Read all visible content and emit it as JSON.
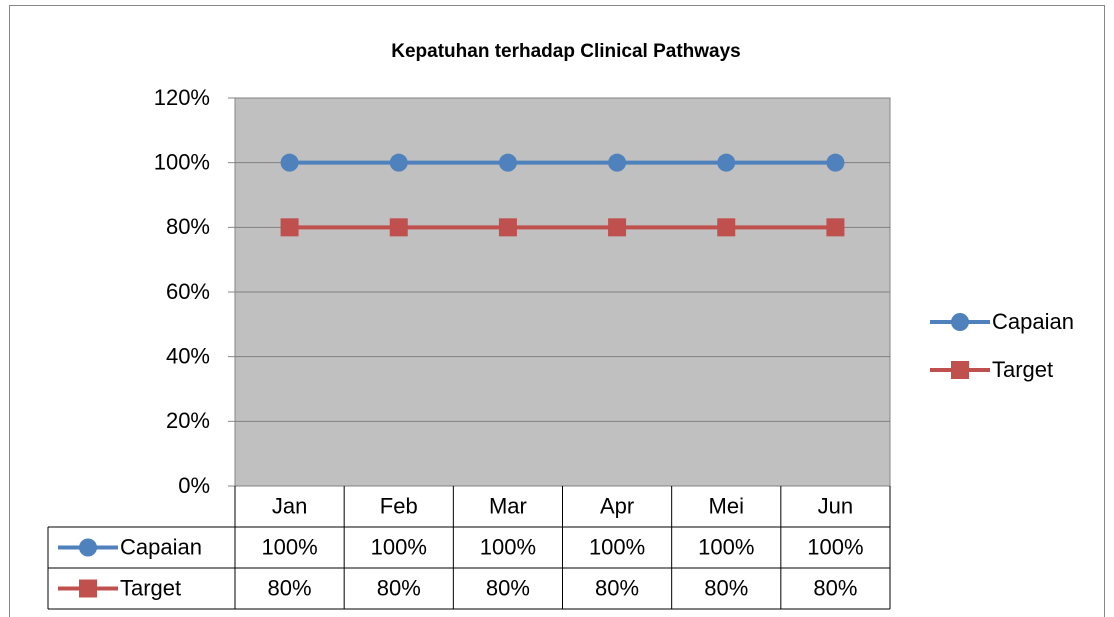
{
  "chart_data": {
    "type": "line",
    "title": "Kepatuhan terhadap Clinical Pathways",
    "categories": [
      "Jan",
      "Feb",
      "Mar",
      "Apr",
      "Mei",
      "Jun"
    ],
    "series": [
      {
        "name": "Capaian",
        "color": "#4f81bd",
        "marker": "circle",
        "values": [
          100,
          100,
          100,
          100,
          100,
          100
        ],
        "value_labels": [
          "100%",
          "100%",
          "100%",
          "100%",
          "100%",
          "100%"
        ]
      },
      {
        "name": "Target",
        "color": "#c0504d",
        "marker": "square",
        "values": [
          80,
          80,
          80,
          80,
          80,
          80
        ],
        "value_labels": [
          "80%",
          "80%",
          "80%",
          "80%",
          "80%",
          "80%"
        ]
      }
    ],
    "ylim": [
      0,
      120
    ],
    "yticks": [
      {
        "value": 0,
        "label": "0%"
      },
      {
        "value": 20,
        "label": "20%"
      },
      {
        "value": 40,
        "label": "40%"
      },
      {
        "value": 60,
        "label": "60%"
      },
      {
        "value": 80,
        "label": "80%"
      },
      {
        "value": 100,
        "label": "100%"
      },
      {
        "value": 120,
        "label": "120%"
      }
    ],
    "grid": true,
    "legend": "right",
    "plot_background": "#c0c0c0",
    "data_table": true
  }
}
